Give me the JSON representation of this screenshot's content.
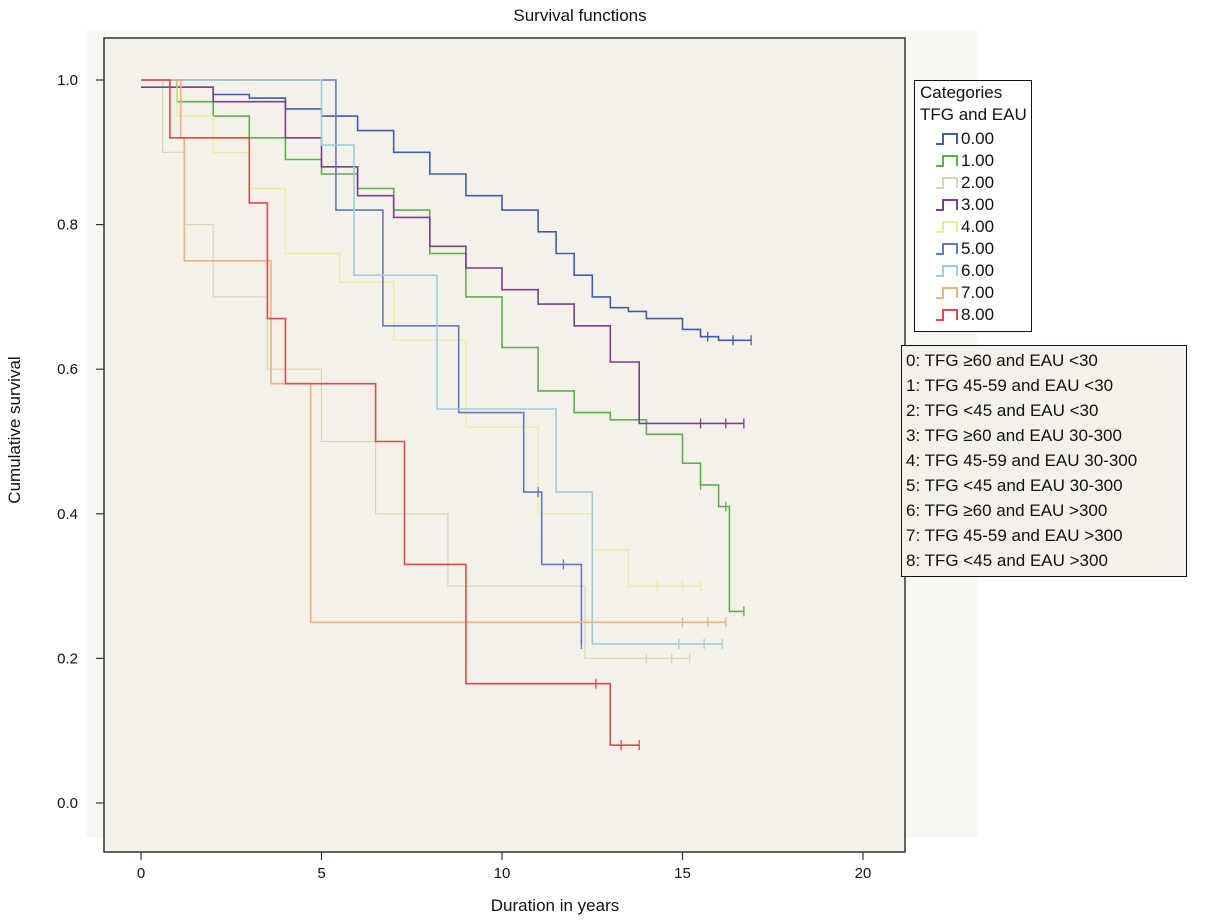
{
  "chart_data": {
    "type": "line",
    "step": true,
    "title": "Survival functions",
    "xlabel": "Duration in years",
    "ylabel": "Cumulative survival",
    "xlim": [
      -1,
      22
    ],
    "ylim": [
      -0.06,
      1.06
    ],
    "x_ticks": [
      0,
      5,
      10,
      15,
      20
    ],
    "x_tick_labels": [
      "0",
      "5",
      "10",
      "15",
      "20"
    ],
    "y_ticks": [
      0.0,
      0.2,
      0.4,
      0.6,
      0.8,
      1.0
    ],
    "y_tick_labels": [
      "0.0",
      "0.2",
      "0.4",
      "0.6",
      "0.8",
      "1.0"
    ],
    "grid": false,
    "background": "#f3f1ea",
    "legend": {
      "title_lines": [
        "Categories",
        "TFG and EAU"
      ],
      "placement": "right"
    },
    "category_key": [
      "0: TFG ≥60 and EAU <30",
      "1: TFG 45-59 and EAU <30",
      "2: TFG <45 and EAU <30",
      "3: TFG ≥60 and EAU 30-300",
      "4: TFG 45-59 and EAU 30-300",
      "5: TFG <45 and EAU 30-300",
      "6: TFG ≥60 and EAU >300",
      "7: TFG 45-59 and EAU >300",
      "8: TFG <45 and EAU >300"
    ],
    "series": [
      {
        "name": "0.00",
        "color": "#3f5fae",
        "width": 1.6,
        "x": [
          0,
          1,
          2,
          3,
          4,
          5,
          6,
          7,
          8,
          9,
          10,
          11,
          11.5,
          12,
          12.5,
          13,
          13.5,
          14,
          15,
          15.5,
          16,
          16.9
        ],
        "y": [
          1.0,
          0.99,
          0.98,
          0.975,
          0.96,
          0.95,
          0.93,
          0.9,
          0.87,
          0.84,
          0.82,
          0.79,
          0.76,
          0.73,
          0.7,
          0.685,
          0.68,
          0.67,
          0.655,
          0.645,
          0.64,
          0.64
        ]
      },
      {
        "name": "1.00",
        "color": "#5fb04d",
        "width": 1.6,
        "x": [
          0,
          1,
          2,
          3,
          4,
          5,
          6,
          7,
          8,
          9,
          10,
          11,
          12,
          13,
          14,
          15,
          15.5,
          16,
          16.3,
          16.7
        ],
        "y": [
          1.0,
          0.97,
          0.95,
          0.92,
          0.89,
          0.87,
          0.85,
          0.82,
          0.76,
          0.7,
          0.63,
          0.57,
          0.54,
          0.53,
          0.51,
          0.47,
          0.44,
          0.41,
          0.265,
          0.265
        ]
      },
      {
        "name": "2.00",
        "color": "#d9d5b6",
        "width": 1.2,
        "x": [
          0,
          0.6,
          1.2,
          2,
          3.5,
          5,
          6.5,
          8.5,
          12.3,
          15.2
        ],
        "y": [
          1.0,
          0.9,
          0.8,
          0.7,
          0.6,
          0.5,
          0.4,
          0.3,
          0.2,
          0.2
        ]
      },
      {
        "name": "3.00",
        "color": "#7a3f8f",
        "width": 1.6,
        "x": [
          0,
          2,
          4,
          5,
          6,
          7,
          8,
          9,
          10,
          11,
          12,
          13,
          13.8,
          14.8,
          16.7
        ],
        "y": [
          0.99,
          0.97,
          0.92,
          0.88,
          0.84,
          0.81,
          0.77,
          0.74,
          0.71,
          0.69,
          0.66,
          0.61,
          0.525,
          0.525,
          0.525
        ]
      },
      {
        "name": "4.00",
        "color": "#eeea95",
        "width": 1.2,
        "x": [
          0,
          1,
          2,
          3,
          4,
          5.5,
          7,
          9,
          11,
          12.5,
          13.5,
          15.5
        ],
        "y": [
          1.0,
          0.95,
          0.9,
          0.85,
          0.76,
          0.72,
          0.64,
          0.52,
          0.4,
          0.35,
          0.3,
          0.3
        ]
      },
      {
        "name": "5.00",
        "color": "#6279c4",
        "width": 1.6,
        "x": [
          0,
          5.4,
          6.7,
          8.8,
          10.6,
          11.1,
          12.2
        ],
        "y": [
          1.0,
          0.82,
          0.66,
          0.54,
          0.43,
          0.33,
          0.22
        ]
      },
      {
        "name": "6.00",
        "color": "#9ccfd9",
        "width": 1.6,
        "x": [
          0,
          5,
          5.9,
          8.2,
          11.5,
          12.5,
          16.1
        ],
        "y": [
          1.0,
          0.91,
          0.73,
          0.545,
          0.43,
          0.22,
          0.22
        ]
      },
      {
        "name": "7.00",
        "color": "#f0b27c",
        "width": 1.6,
        "x": [
          0,
          1.1,
          1.2,
          3.6,
          4.7,
          16.2
        ],
        "y": [
          1.0,
          0.92,
          0.75,
          0.58,
          0.25,
          0.25
        ]
      },
      {
        "name": "8.00",
        "color": "#e0484a",
        "width": 1.6,
        "x": [
          0,
          0.8,
          3,
          3.5,
          4,
          6.5,
          7.3,
          9,
          13,
          13.8
        ],
        "y": [
          1.0,
          0.92,
          0.83,
          0.67,
          0.58,
          0.5,
          0.33,
          0.165,
          0.08,
          0.08
        ]
      }
    ]
  }
}
